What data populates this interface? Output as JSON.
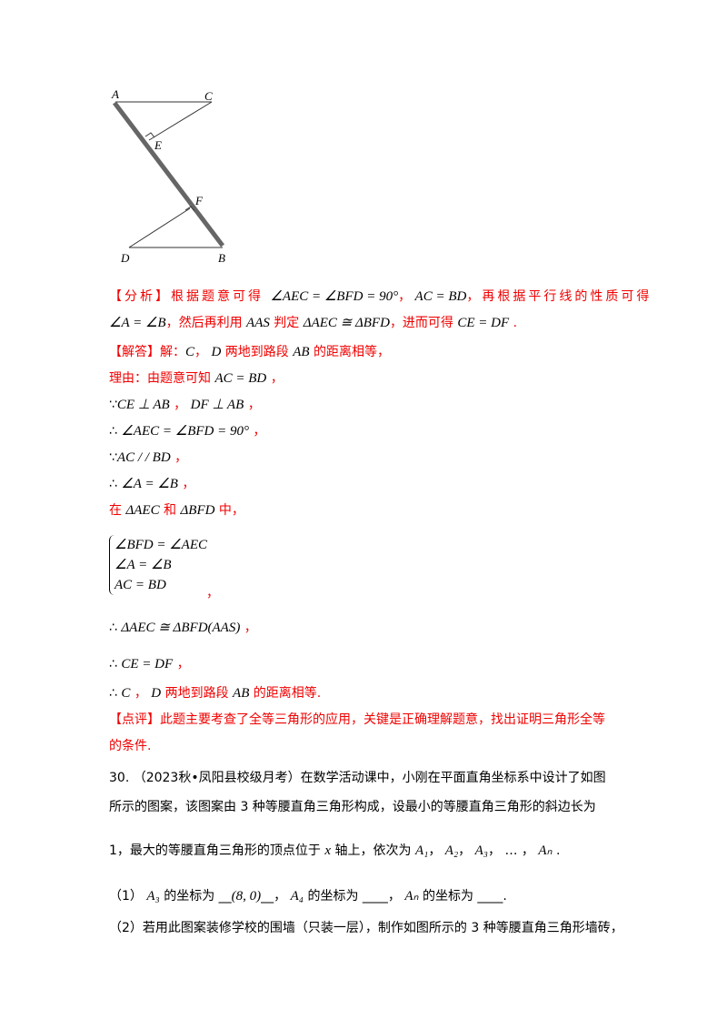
{
  "figure": {
    "labels": {
      "A": "A",
      "B": "B",
      "C": "C",
      "D": "D",
      "E": "E",
      "F": "F"
    }
  },
  "colors": {
    "accent": "#f00000",
    "text": "#000000"
  },
  "lines": [
    [
      {
        "t": "【分析】根据题意可得 ",
        "c": "r sp"
      },
      {
        "t": "∠AEC = ∠BFD = 90°",
        "c": "m"
      },
      {
        "t": "，  ",
        "c": "r"
      },
      {
        "t": "AC = BD",
        "c": "m"
      },
      {
        "t": "，再根据平行线的性质可得",
        "c": "r sp"
      }
    ],
    [
      {
        "t": "∠A = ∠B",
        "c": "m"
      },
      {
        "t": "，然后再利用 ",
        "c": "r"
      },
      {
        "t": "AAS",
        "c": "m"
      },
      {
        "t": " 判定 ",
        "c": "r"
      },
      {
        "t": "ΔAEC ≅ ΔBFD",
        "c": "m"
      },
      {
        "t": "，进而可得 ",
        "c": "r"
      },
      {
        "t": "CE = DF",
        "c": "m"
      },
      {
        "t": " .",
        "c": "r"
      }
    ],
    [
      {
        "t": "【解答】解：",
        "c": "r"
      },
      {
        "t": "C",
        "c": "m"
      },
      {
        "t": "， ",
        "c": "r"
      },
      {
        "t": "D",
        "c": "m"
      },
      {
        "t": " 两地到路段 ",
        "c": "r"
      },
      {
        "t": "AB",
        "c": "m"
      },
      {
        "t": " 的距离相等，",
        "c": "r"
      }
    ],
    [
      {
        "t": "理由：由题意可知 ",
        "c": "r"
      },
      {
        "t": "AC = BD",
        "c": "m"
      },
      {
        "t": " ，",
        "c": "r"
      }
    ],
    [
      {
        "t": "∵",
        "c": "k"
      },
      {
        "t": "CE ⊥ AB",
        "c": "m"
      },
      {
        "t": " ，  ",
        "c": "r"
      },
      {
        "t": "DF ⊥ AB",
        "c": "m"
      },
      {
        "t": " ，",
        "c": "r"
      }
    ],
    [
      {
        "t": "∴ ",
        "c": "k"
      },
      {
        "t": "∠AEC = ∠BFD = 90°",
        "c": "m"
      },
      {
        "t": " ，",
        "c": "r"
      }
    ],
    [
      {
        "t": "∵",
        "c": "k"
      },
      {
        "t": "AC / / BD",
        "c": "m"
      },
      {
        "t": " ，",
        "c": "r"
      }
    ],
    [
      {
        "t": "∴ ",
        "c": "k"
      },
      {
        "t": "∠A = ∠B",
        "c": "m"
      },
      {
        "t": " ，",
        "c": "r"
      }
    ],
    [
      {
        "t": "在 ",
        "c": "r"
      },
      {
        "t": "ΔAEC",
        "c": "m"
      },
      {
        "t": " 和 ",
        "c": "r"
      },
      {
        "t": "ΔBFD",
        "c": "m"
      },
      {
        "t": " 中，",
        "c": "r"
      }
    ]
  ],
  "system": [
    "∠BFD = ∠AEC",
    "∠A = ∠B",
    "AC = BD"
  ],
  "system_comma": "，",
  "lines2": [
    [
      {
        "t": "∴ ",
        "c": "k"
      },
      {
        "t": "ΔAEC ≅ ΔBFD(AAS)",
        "c": "m"
      },
      {
        "t": " ，",
        "c": "r"
      }
    ],
    [
      {
        "t": "∴ ",
        "c": "k"
      },
      {
        "t": "CE = DF",
        "c": "m"
      },
      {
        "t": " ，",
        "c": "r"
      }
    ],
    [
      {
        "t": "∴ ",
        "c": "k"
      },
      {
        "t": "C",
        "c": "m"
      },
      {
        "t": " ， ",
        "c": "r"
      },
      {
        "t": "D",
        "c": "m"
      },
      {
        "t": " 两地到路段 ",
        "c": "r"
      },
      {
        "t": "AB",
        "c": "m"
      },
      {
        "t": " 的距离相等.",
        "c": "r"
      }
    ],
    [
      {
        "t": "【点评】此题主要考查了全等三角形的应用，关键是正确理解题意，找出证明三角形全等",
        "c": "r"
      }
    ],
    [
      {
        "t": "的条件.",
        "c": "r"
      }
    ],
    [
      {
        "t": "30. （2023秋•凤阳县校级月考）在数学活动课中，小刚在平面直角坐标系中设计了如图",
        "c": "k"
      }
    ],
    [
      {
        "t": "所示的图案，该图案由 3 种等腰直角三角形构成，设最小的等腰直角三角形的斜边长为",
        "c": "k"
      }
    ],
    [
      {
        "t": "1，最大的等腰直角三角形的顶点位于 ",
        "c": "k"
      },
      {
        "t": "x",
        "c": "m"
      },
      {
        "t": " 轴上，依次为 ",
        "c": "k"
      },
      {
        "t": "A₁",
        "c": "m"
      },
      {
        "t": "， ",
        "c": "k"
      },
      {
        "t": "A₂",
        "c": "m"
      },
      {
        "t": "， ",
        "c": "k"
      },
      {
        "t": "A₃",
        "c": "m"
      },
      {
        "t": "， … ， ",
        "c": "k"
      },
      {
        "t": "Aₙ",
        "c": "m"
      },
      {
        "t": " .",
        "c": "k"
      }
    ],
    [
      {
        "t": "（1） ",
        "c": "k"
      },
      {
        "t": "A₃",
        "c": "m"
      },
      {
        "t": " 的坐标为 __",
        "c": "k"
      },
      {
        "t": "(8, 0)",
        "c": "m"
      },
      {
        "t": "__， ",
        "c": "k"
      },
      {
        "t": "A₄",
        "c": "m"
      },
      {
        "t": " 的坐标为 ____， ",
        "c": "k"
      },
      {
        "t": "Aₙ",
        "c": "m"
      },
      {
        "t": " 的坐标为 ____.",
        "c": "k"
      }
    ],
    [
      {
        "t": "（2）若用此图案装修学校的围墙（只装一层），制作如图所示的 3 种等腰直角三角形墙砖，",
        "c": "k"
      }
    ]
  ]
}
